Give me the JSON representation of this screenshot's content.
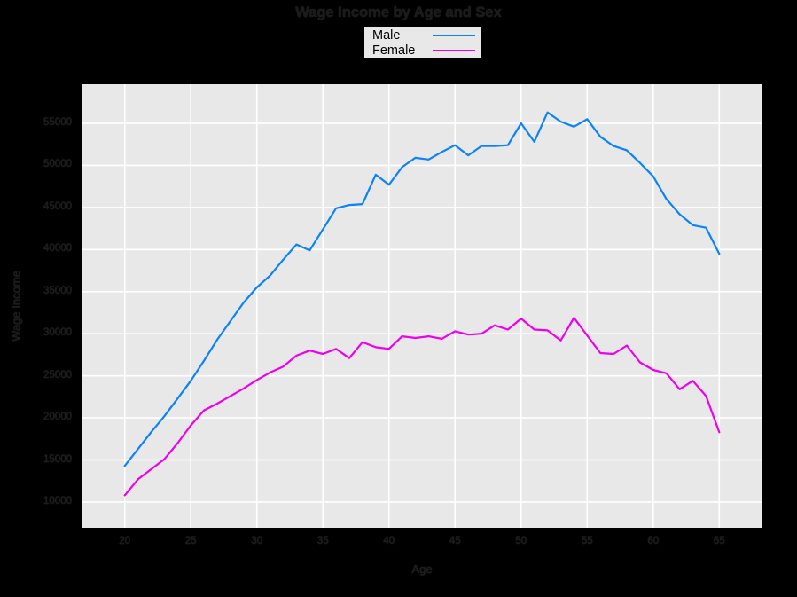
{
  "figure": {
    "background": "#000000",
    "plot_background": "#e8e8e8",
    "gridline_color": "#ffffff"
  },
  "chart_data": {
    "type": "line",
    "title": "Wage Income by Age and Sex",
    "xlabel": "Age",
    "ylabel": "Wage Income",
    "grid": true,
    "legend_position": "top-center-above-plot",
    "xlim": [
      16.8,
      68.2
    ],
    "ylim": [
      6940,
      59640
    ],
    "xticks": [
      20,
      25,
      30,
      35,
      40,
      45,
      50,
      55,
      60,
      65
    ],
    "yticks": [
      10000,
      15000,
      20000,
      25000,
      30000,
      35000,
      40000,
      45000,
      50000,
      55000
    ],
    "x": [
      20,
      21,
      22,
      23,
      24,
      25,
      26,
      27,
      28,
      29,
      30,
      31,
      32,
      33,
      34,
      35,
      36,
      37,
      38,
      39,
      40,
      41,
      42,
      43,
      44,
      45,
      46,
      47,
      48,
      49,
      50,
      51,
      52,
      53,
      54,
      55,
      56,
      57,
      58,
      59,
      60,
      61,
      62,
      63,
      64,
      65
    ],
    "series": [
      {
        "name": "Male",
        "color": "#0c83f9",
        "values": [
          14300,
          16300,
          18300,
          20200,
          22300,
          24400,
          26800,
          29300,
          31500,
          33700,
          35500,
          36900,
          38800,
          40600,
          39900,
          42400,
          44900,
          45300,
          45400,
          48900,
          47700,
          49800,
          50900,
          50700,
          51600,
          52400,
          51200,
          52300,
          52300,
          52400,
          55000,
          52800,
          56300,
          55200,
          54600,
          55500,
          53400,
          52300,
          51800,
          50300,
          48700,
          46000,
          44200,
          42900,
          42600,
          39500
        ]
      },
      {
        "name": "Female",
        "color": "#ee00ee",
        "values": [
          10800,
          12700,
          13900,
          15100,
          17000,
          19100,
          20900,
          21700,
          22600,
          23500,
          24500,
          25400,
          26100,
          27400,
          28000,
          27600,
          28200,
          27100,
          29000,
          28400,
          28200,
          29700,
          29500,
          29700,
          29400,
          30300,
          29900,
          30000,
          31000,
          30500,
          31800,
          30500,
          30400,
          29200,
          31900,
          29800,
          27700,
          27600,
          28600,
          26600,
          25700,
          25300,
          23400,
          24400,
          22600,
          18300
        ]
      }
    ]
  }
}
